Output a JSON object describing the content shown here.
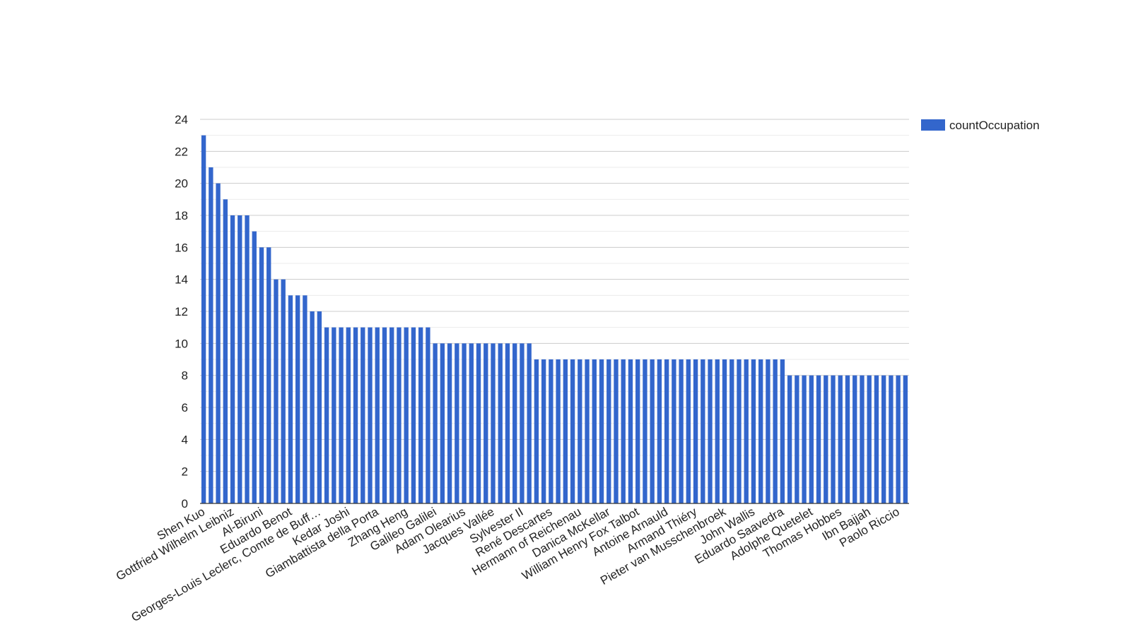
{
  "chart_data": {
    "type": "bar",
    "title": "",
    "xlabel": "",
    "ylabel": "",
    "ylim": [
      0,
      24
    ],
    "yticks": [
      0,
      2,
      4,
      6,
      8,
      10,
      12,
      14,
      16,
      18,
      20,
      22,
      24
    ],
    "grid": true,
    "legend_position": "right",
    "bar_color": "#3366cc",
    "series": [
      {
        "name": "countOccupation",
        "values": [
          23,
          21,
          20,
          19,
          18,
          18,
          18,
          17,
          16,
          16,
          14,
          14,
          13,
          13,
          13,
          12,
          12,
          11,
          11,
          11,
          11,
          11,
          11,
          11,
          11,
          11,
          11,
          11,
          11,
          11,
          11,
          11,
          10,
          10,
          10,
          10,
          10,
          10,
          10,
          10,
          10,
          10,
          10,
          10,
          10,
          10,
          9,
          9,
          9,
          9,
          9,
          9,
          9,
          9,
          9,
          9,
          9,
          9,
          9,
          9,
          9,
          9,
          9,
          9,
          9,
          9,
          9,
          9,
          9,
          9,
          9,
          9,
          9,
          9,
          9,
          9,
          9,
          9,
          9,
          9,
          9,
          8,
          8,
          8,
          8,
          8,
          8,
          8,
          8,
          8,
          8,
          8,
          8,
          8,
          8,
          8,
          8,
          8
        ]
      }
    ],
    "category_labels_shown_every": 4,
    "categories_shown": [
      "Shen Kuo",
      "Gottfried Wilhelm Leibniz",
      "Al-Biruni",
      "Eduardo Benot",
      "Georges-Louis Leclerc, Comte de Buff…",
      "Kedar Joshi",
      "Giambattista della Porta",
      "Zhang Heng",
      "Galileo Galilei",
      "Adam Olearius",
      "Jacques Vallée",
      "Sylvester II",
      "René Descartes",
      "Hermann of Reichenau",
      "Danica McKellar",
      "William Henry Fox Talbot",
      "Antoine Arnauld",
      "Armand Thiéry",
      "Pieter van Musschenbroek",
      "John Wallis",
      "Eduardo Saavedra",
      "Adolphe Quetelet",
      "Thomas Hobbes",
      "Ibn Bajjah",
      "Paolo Riccio"
    ]
  }
}
